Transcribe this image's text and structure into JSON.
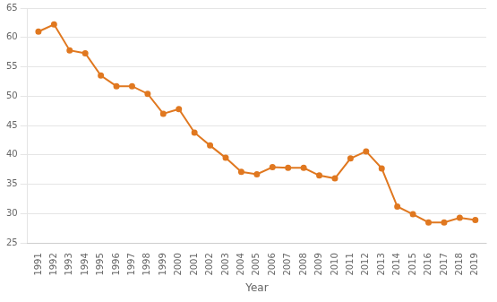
{
  "chart_data": {
    "type": "line",
    "xlabel": "Year",
    "x": [
      1991,
      1992,
      1993,
      1994,
      1995,
      1996,
      1997,
      1998,
      1999,
      2000,
      2001,
      2002,
      2003,
      2004,
      2005,
      2006,
      2007,
      2008,
      2009,
      2010,
      2011,
      2012,
      2013,
      2014,
      2015,
      2016,
      2017,
      2018,
      2019
    ],
    "values": [
      61.0,
      62.2,
      57.8,
      57.3,
      53.5,
      51.7,
      51.7,
      50.4,
      47.0,
      47.8,
      43.8,
      41.6,
      39.5,
      37.1,
      36.7,
      37.9,
      37.8,
      37.8,
      36.5,
      36.0,
      39.4,
      40.6,
      37.7,
      31.2,
      29.9,
      28.5,
      28.5,
      29.3,
      28.9
    ],
    "color": "#E07820",
    "marker": "o",
    "xlim": [
      1990.3,
      2019.7
    ],
    "xticks": [
      1991,
      1992,
      1993,
      1994,
      1995,
      1996,
      1997,
      1998,
      1999,
      2000,
      2001,
      2002,
      2003,
      2004,
      2005,
      2006,
      2007,
      2008,
      2009,
      2010,
      2011,
      2012,
      2013,
      2014,
      2015,
      2016,
      2017,
      2018,
      2019
    ],
    "ylim": [
      25,
      65
    ],
    "yticks": [
      25,
      30,
      35,
      40,
      45,
      50,
      55,
      60,
      65
    ],
    "grid": "y"
  }
}
